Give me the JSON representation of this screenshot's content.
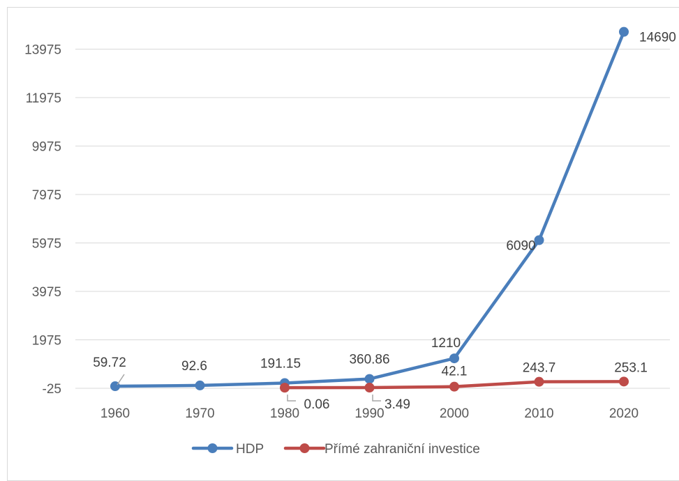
{
  "chart_data": {
    "type": "line",
    "x": [
      "1960",
      "1970",
      "1980",
      "1990",
      "2000",
      "2010",
      "2020"
    ],
    "y_ticks": [
      -25,
      1975,
      3975,
      5975,
      7975,
      9975,
      11975,
      13975
    ],
    "y_tick_labels": [
      "-25",
      "1975",
      "3975",
      "5975",
      "7975",
      "9975",
      "11975",
      "13975"
    ],
    "ylim": [
      -25,
      15000
    ],
    "grid": true,
    "legend_position": "bottom",
    "series": [
      {
        "name": "HDP",
        "color": "#4a7ebb",
        "values": [
          59.72,
          92.6,
          191.15,
          360.86,
          1210,
          6090,
          14690
        ],
        "labels": [
          "59.72",
          "92.6",
          "191.15",
          "360.86",
          "1210",
          "6090",
          "14690"
        ]
      },
      {
        "name": "Přímé zahraniční investice",
        "color": "#be4b48",
        "values": [
          null,
          null,
          0.06,
          3.49,
          42.1,
          243.7,
          253.1
        ],
        "labels": [
          null,
          null,
          "0.06",
          "3.49",
          "42.1",
          "243.7",
          "253.1"
        ]
      }
    ]
  }
}
